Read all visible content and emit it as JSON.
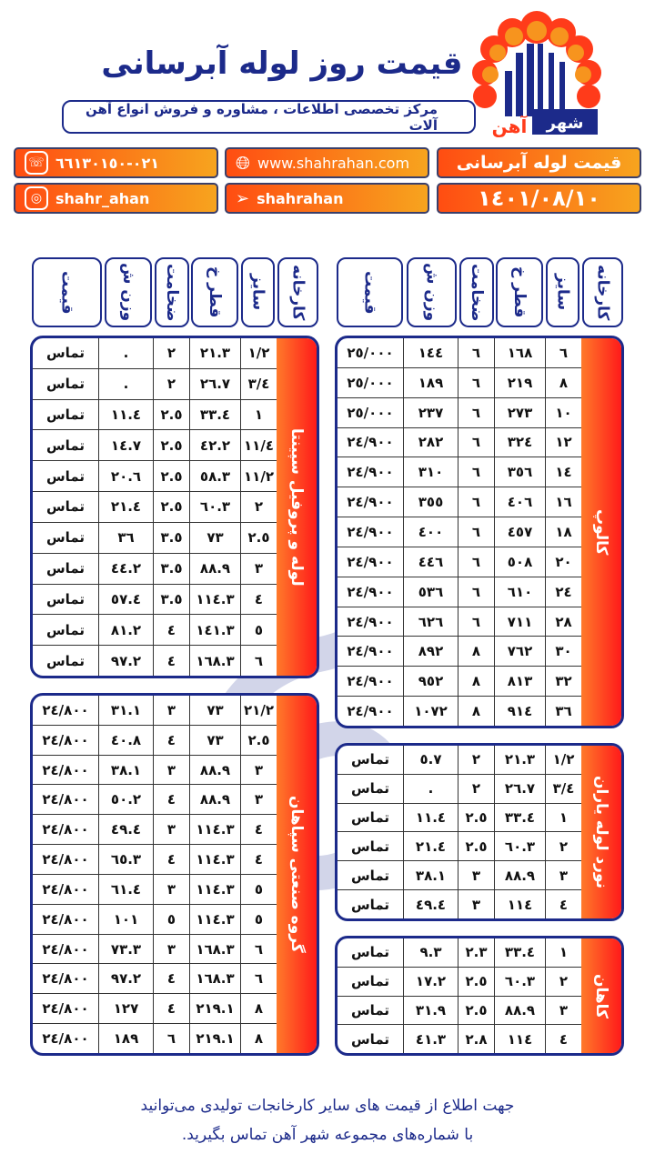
{
  "header": {
    "title": "قیمت روز لوله آبرسانی",
    "subtitle": "مرکز تخصصی اطلاعات ، مشاوره و فروش انواع آهن آلات",
    "logo_text": "شهر آهن"
  },
  "info": {
    "phone": "٠٢١-٦٦١٣٠١٥٠",
    "website": "www.shahrahan.com",
    "category": "قیمت لوله آبرسانی",
    "instagram": "shahr_ahan",
    "telegram": "shahrahan",
    "date": "١٤٠١/٠٨/١٠"
  },
  "icons": {
    "phone": "phone-icon",
    "website": "globe-icon",
    "instagram": "instagram-icon",
    "telegram": "telegram-icon"
  },
  "columns": [
    "کارخانه",
    "سایز",
    "قطر خ",
    "ضخامت",
    "وزن ش",
    "قیمت"
  ],
  "tables": {
    "kalop": {
      "label": "کالوپ",
      "rows": [
        [
          "٦",
          "١٦٨",
          "٦",
          "١٤٤",
          "٢٥/٠٠٠"
        ],
        [
          "٨",
          "٢١٩",
          "٦",
          "١٨٩",
          "٢٥/٠٠٠"
        ],
        [
          "١٠",
          "٢٧٣",
          "٦",
          "٢٣٧",
          "٢٥/٠٠٠"
        ],
        [
          "١٢",
          "٣٢٤",
          "٦",
          "٢٨٢",
          "٢٤/٩٠٠"
        ],
        [
          "١٤",
          "٣٥٦",
          "٦",
          "٣١٠",
          "٢٤/٩٠٠"
        ],
        [
          "١٦",
          "٤٠٦",
          "٦",
          "٣٥٥",
          "٢٤/٩٠٠"
        ],
        [
          "١٨",
          "٤٥٧",
          "٦",
          "٤٠٠",
          "٢٤/٩٠٠"
        ],
        [
          "٢٠",
          "٥٠٨",
          "٦",
          "٤٤٦",
          "٢٤/٩٠٠"
        ],
        [
          "٢٤",
          "٦١٠",
          "٦",
          "٥٣٦",
          "٢٤/٩٠٠"
        ],
        [
          "٢٨",
          "٧١١",
          "٦",
          "٦٢٦",
          "٢٤/٩٠٠"
        ],
        [
          "٣٠",
          "٧٦٢",
          "٨",
          "٨٩٢",
          "٢٤/٩٠٠"
        ],
        [
          "٣٢",
          "٨١٣",
          "٨",
          "٩٥٢",
          "٢٤/٩٠٠"
        ],
        [
          "٣٦",
          "٩١٤",
          "٨",
          "١٠٧٢",
          "٢٤/٩٠٠"
        ]
      ]
    },
    "yaran": {
      "label": "نورد لوله یاران",
      "rows": [
        [
          "١/٢",
          "٢١.٣",
          "٢",
          "٥.٧",
          "تماس"
        ],
        [
          "٣/٤",
          "٢٦.٧",
          "٢",
          ".",
          "تماس"
        ],
        [
          "١",
          "٣٣.٤",
          "٢.٥",
          "١١.٤",
          "تماس"
        ],
        [
          "٢",
          "٦٠.٣",
          "٢.٥",
          "٢١.٤",
          "تماس"
        ],
        [
          "٣",
          "٨٨.٩",
          "٣",
          "٣٨.١",
          "تماس"
        ],
        [
          "٤",
          "١١٤",
          "٣",
          "٤٩.٤",
          "تماس"
        ]
      ]
    },
    "kahan": {
      "label": "کاهان",
      "rows": [
        [
          "١",
          "٣٣.٤",
          "٢.٣",
          "٩.٣",
          "تماس"
        ],
        [
          "٢",
          "٦٠.٣",
          "٢.٥",
          "١٧.٢",
          "تماس"
        ],
        [
          "٣",
          "٨٨.٩",
          "٢.٥",
          "٣١.٩",
          "تماس"
        ],
        [
          "٤",
          "١١٤",
          "٢.٨",
          "٤١.٣",
          "تماس"
        ]
      ]
    },
    "sepinta": {
      "label": "لوله و پروفیل سپینتا",
      "rows": [
        [
          "١/٢",
          "٢١.٣",
          "٢",
          ".",
          "تماس"
        ],
        [
          "٣/٤",
          "٢٦.٧",
          "٢",
          ".",
          "تماس"
        ],
        [
          "١",
          "٣٣.٤",
          "٢.٥",
          "١١.٤",
          "تماس"
        ],
        [
          "١١/٤",
          "٤٢.٢",
          "٢.٥",
          "١٤.٧",
          "تماس"
        ],
        [
          "١١/٢",
          "٥٨.٣",
          "٢.٥",
          "٢٠.٦",
          "تماس"
        ],
        [
          "٢",
          "٦٠.٣",
          "٢.٥",
          "٢١.٤",
          "تماس"
        ],
        [
          "٢.٥",
          "٧٣",
          "٣.٥",
          "٣٦",
          "تماس"
        ],
        [
          "٣",
          "٨٨.٩",
          "٣.٥",
          "٤٤.٢",
          "تماس"
        ],
        [
          "٤",
          "١١٤.٣",
          "٣.٥",
          "٥٧.٤",
          "تماس"
        ],
        [
          "٥",
          "١٤١.٣",
          "٤",
          "٨١.٢",
          "تماس"
        ],
        [
          "٦",
          "١٦٨.٣",
          "٤",
          "٩٧.٢",
          "تماس"
        ]
      ]
    },
    "sepahan": {
      "label": "گروه صنعتی سپاهان",
      "rows": [
        [
          "٢١/٢",
          "٧٣",
          "٣",
          "٣١.١",
          "٢٤/٨٠٠"
        ],
        [
          "٢.٥",
          "٧٣",
          "٤",
          "٤٠.٨",
          "٢٤/٨٠٠"
        ],
        [
          "٣",
          "٨٨.٩",
          "٣",
          "٣٨.١",
          "٢٤/٨٠٠"
        ],
        [
          "٣",
          "٨٨.٩",
          "٤",
          "٥٠.٢",
          "٢٤/٨٠٠"
        ],
        [
          "٤",
          "١١٤.٣",
          "٣",
          "٤٩.٤",
          "٢٤/٨٠٠"
        ],
        [
          "٤",
          "١١٤.٣",
          "٤",
          "٦٥.٣",
          "٢٤/٨٠٠"
        ],
        [
          "٥",
          "١١٤.٣",
          "٣",
          "٦١.٤",
          "٢٤/٨٠٠"
        ],
        [
          "٥",
          "١١٤.٣",
          "٥",
          "١٠١",
          "٢٤/٨٠٠"
        ],
        [
          "٦",
          "١٦٨.٣",
          "٣",
          "٧٣.٣",
          "٢٤/٨٠٠"
        ],
        [
          "٦",
          "١٦٨.٣",
          "٤",
          "٩٧.٢",
          "٢٤/٨٠٠"
        ],
        [
          "٨",
          "٢١٩.١",
          "٤",
          "١٢٧",
          "٢٤/٨٠٠"
        ],
        [
          "٨",
          "٢١٩.١",
          "٦",
          "١٨٩",
          "٢٤/٨٠٠"
        ]
      ]
    }
  },
  "footer": {
    "line1": "جهت اطلاع از قیمت های سایر کارخانجات تولیدی می‌توانید",
    "line2": "با شماره‌های مجموعه شهر آهن تماس بگیرید."
  },
  "colors": {
    "brand_blue": "#1c2a8a",
    "orange_start": "#ff4d12",
    "orange_end": "#f7a41e",
    "label_red": "#ff1a1a"
  }
}
